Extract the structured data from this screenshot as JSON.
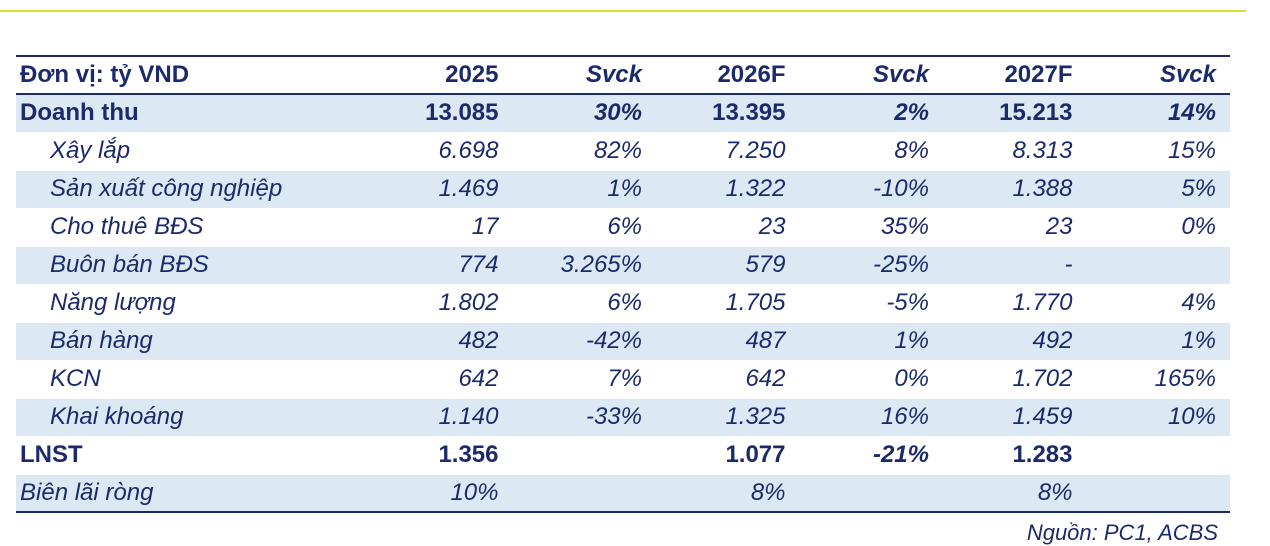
{
  "table": {
    "header": [
      "Đơn vị: tỷ VND",
      "2025",
      "Svck",
      "2026F",
      "Svck",
      "2027F",
      "Svck"
    ],
    "rows": [
      {
        "label": "Doanh thu",
        "v2025": "13.085",
        "s2025": "30%",
        "v2026": "13.395",
        "s2026": "2%",
        "v2027": "15.213",
        "s2027": "14%"
      },
      {
        "label": "Xây lắp",
        "v2025": "6.698",
        "s2025": "82%",
        "v2026": "7.250",
        "s2026": "8%",
        "v2027": "8.313",
        "s2027": "15%"
      },
      {
        "label": "Sản xuất công nghiệp",
        "v2025": "1.469",
        "s2025": "1%",
        "v2026": "1.322",
        "s2026": "-10%",
        "v2027": "1.388",
        "s2027": "5%"
      },
      {
        "label": "Cho thuê BĐS",
        "v2025": "17",
        "s2025": "6%",
        "v2026": "23",
        "s2026": "35%",
        "v2027": "23",
        "s2027": "0%"
      },
      {
        "label": "Buôn bán BĐS",
        "v2025": "774",
        "s2025": "3.265%",
        "v2026": "579",
        "s2026": "-25%",
        "v2027": "-",
        "s2027": ""
      },
      {
        "label": "Năng lượng",
        "v2025": "1.802",
        "s2025": "6%",
        "v2026": "1.705",
        "s2026": "-5%",
        "v2027": "1.770",
        "s2027": "4%"
      },
      {
        "label": "Bán hàng",
        "v2025": "482",
        "s2025": "-42%",
        "v2026": "487",
        "s2026": "1%",
        "v2027": "492",
        "s2027": "1%"
      },
      {
        "label": "KCN",
        "v2025": "642",
        "s2025": "7%",
        "v2026": "642",
        "s2026": "0%",
        "v2027": "1.702",
        "s2027": "165%"
      },
      {
        "label": "Khai khoáng",
        "v2025": "1.140",
        "s2025": "-33%",
        "v2026": "1.325",
        "s2026": "16%",
        "v2027": "1.459",
        "s2027": "10%"
      },
      {
        "label": "LNST",
        "v2025": "1.356",
        "s2025": "",
        "v2026": "1.077",
        "s2026": "-21%",
        "v2027": "1.283",
        "s2027": ""
      },
      {
        "label": "Biên lãi ròng",
        "v2025": "10%",
        "s2025": "",
        "v2026": "8%",
        "s2026": "",
        "v2027": "8%",
        "s2027": ""
      }
    ]
  },
  "source": "Nguồn: PC1, ACBS",
  "colors": {
    "text": "#1b2a6b",
    "shade": "#dce8f4",
    "accent_rule": "#d7df2f"
  }
}
